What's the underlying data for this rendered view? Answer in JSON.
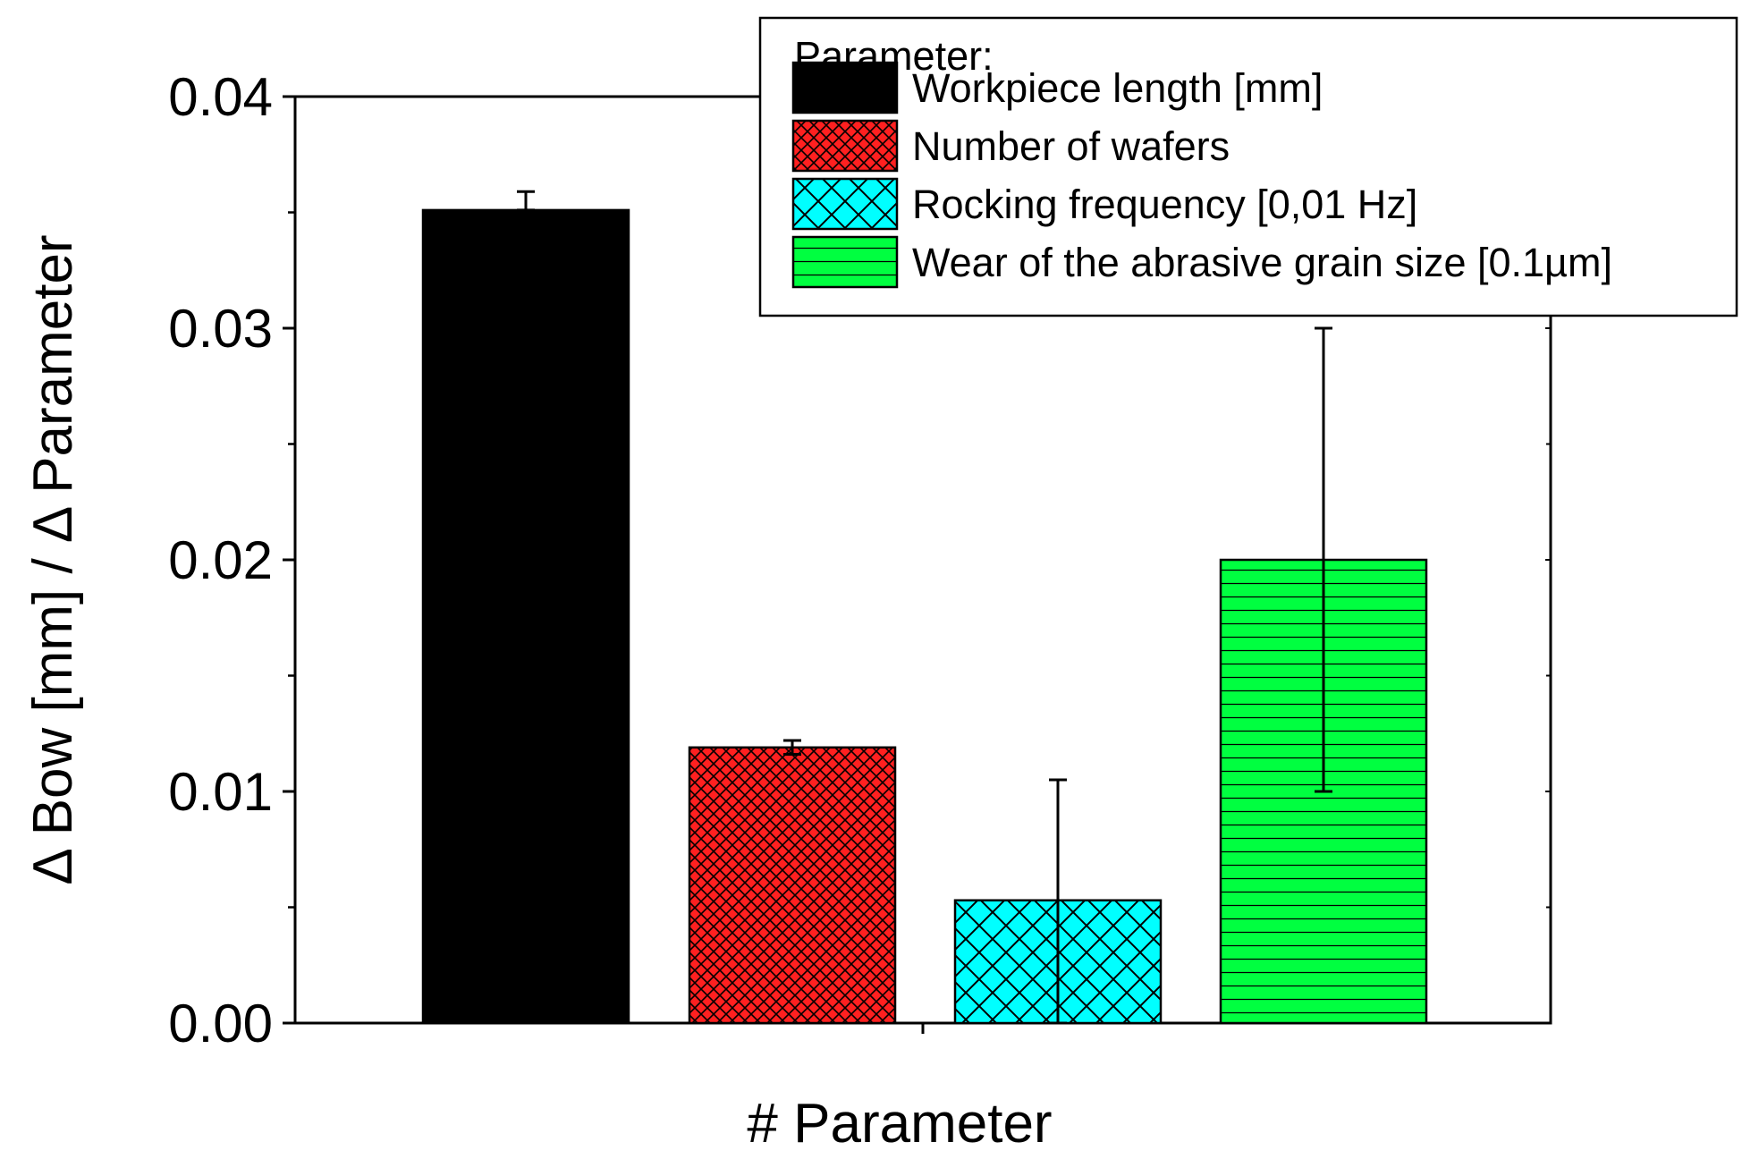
{
  "chart_data": {
    "type": "bar",
    "title": "",
    "xlabel": "# Parameter",
    "ylabel": "Δ Bow [mm] / Δ Parameter",
    "ylim": [
      0,
      0.04
    ],
    "y_ticks": [
      "0.00",
      "0.01",
      "0.02",
      "0.03",
      "0.04"
    ],
    "y_tick_values": [
      0,
      0.01,
      0.02,
      0.03,
      0.04
    ],
    "grid": false,
    "legend_position": "top-right",
    "legend_title": "Parameter:",
    "series": [
      {
        "name": "Workpiece length [mm]",
        "value": 0.0351,
        "error_low": 0.0351,
        "error_high": 0.0359,
        "color": "#000000",
        "pattern": "solid"
      },
      {
        "name": "Number of wafers",
        "value": 0.0119,
        "error_low": 0.0116,
        "error_high": 0.0122,
        "color": "#ff2020",
        "pattern": "crosshatch-fine"
      },
      {
        "name": "Rocking frequency [0,01 Hz]",
        "value": 0.0053,
        "error_low": 0.0,
        "error_high": 0.0105,
        "color": "#00ffff",
        "pattern": "crosshatch"
      },
      {
        "name": "Wear of the abrasive grain size [0.1µm]",
        "value": 0.02,
        "error_low": 0.01,
        "error_high": 0.03,
        "color": "#00ff40",
        "pattern": "horizontal-lines"
      }
    ]
  }
}
